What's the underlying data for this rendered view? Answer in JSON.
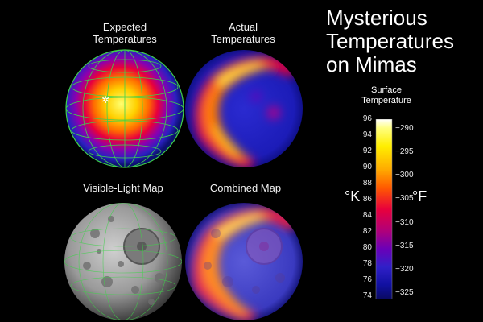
{
  "title": [
    "Mysterious",
    "Temperatures",
    "on Mimas"
  ],
  "panels": {
    "expected": [
      "Expected",
      "Temperatures"
    ],
    "actual": [
      "Actual",
      "Temperatures"
    ],
    "visible": "Visible-Light Map",
    "combined": "Combined Map"
  },
  "scale": {
    "title": [
      "Surface",
      "Temperature"
    ],
    "unit_left": "°K",
    "unit_right": "°F",
    "kelvin_ticks": [
      "96",
      "94",
      "92",
      "90",
      "88",
      "86",
      "84",
      "82",
      "80",
      "78",
      "76",
      "74"
    ],
    "fahrenheit_ticks": [
      "-290",
      "-295",
      "-300",
      "-305",
      "-310",
      "-315",
      "-320",
      "-325"
    ],
    "colors": [
      "#ffffff",
      "#ffff80",
      "#ffee00",
      "#ffaa00",
      "#ff5a00",
      "#e8003c",
      "#b0007a",
      "#6a00b8",
      "#3020c8",
      "#1010a0",
      "#0a0a60"
    ]
  }
}
